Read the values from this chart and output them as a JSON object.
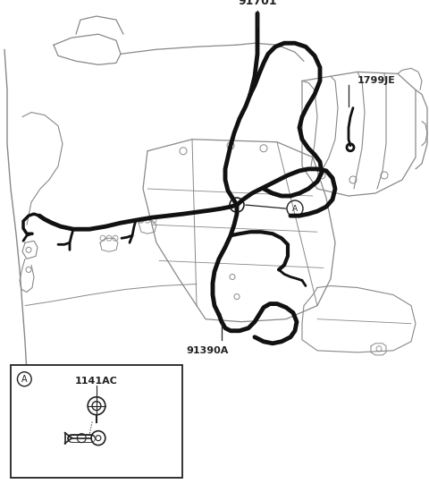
{
  "bg_color": "#ffffff",
  "line_color": "#222222",
  "thick_wire_color": "#111111",
  "thin_line_color": "#888888",
  "label_91701": "91701",
  "label_1799JE": "1799JE",
  "label_91390A": "91390A",
  "label_A": "A",
  "label_1141AC": "1141AC",
  "label_fontsize": 8,
  "fig_width": 4.8,
  "fig_height": 5.41,
  "dpi": 100
}
